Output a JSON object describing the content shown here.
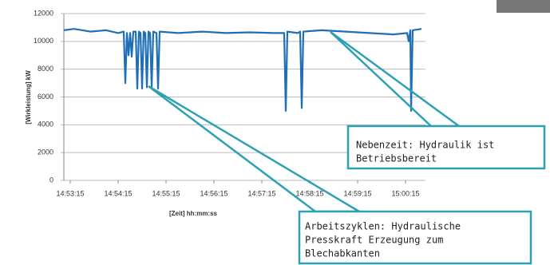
{
  "chart_data": {
    "type": "line",
    "x_label": "[Zeit] hh:mm:ss",
    "y_label": "[Wirkleistung] kW",
    "x": [
      "14:53:07",
      "14:53:20",
      "14:53:40",
      "14:54:00",
      "14:54:15",
      "14:54:22",
      "14:54:24",
      "14:54:26",
      "14:54:28",
      "14:54:30",
      "14:54:32",
      "14:54:34",
      "14:54:37",
      "14:54:39",
      "14:54:41",
      "14:54:43",
      "14:54:45",
      "14:54:47",
      "14:54:49",
      "14:54:51",
      "14:54:53",
      "14:54:55",
      "14:54:57",
      "14:54:59",
      "14:55:03",
      "14:55:05",
      "14:55:07",
      "14:55:30",
      "14:56:00",
      "14:56:30",
      "14:57:00",
      "14:57:30",
      "14:57:43",
      "14:57:45",
      "14:57:47",
      "14:58:00",
      "14:58:03",
      "14:58:05",
      "14:58:07",
      "14:58:30",
      "14:59:00",
      "14:59:30",
      "15:00:00",
      "15:00:17",
      "15:00:19",
      "15:00:21",
      "15:00:22",
      "15:00:24",
      "15:00:35"
    ],
    "series": [
      {
        "color": "#1f6fb5",
        "values": [
          10800,
          10900,
          10700,
          10800,
          10600,
          10700,
          7000,
          10600,
          9000,
          10600,
          8900,
          10700,
          10700,
          6600,
          10700,
          10600,
          6600,
          10700,
          10600,
          6700,
          10700,
          10600,
          6700,
          10700,
          10600,
          6600,
          10700,
          10600,
          10700,
          10600,
          10650,
          10600,
          10600,
          5000,
          10700,
          10600,
          10700,
          5200,
          10700,
          10800,
          10700,
          10600,
          10500,
          10600,
          10000,
          10800,
          5000,
          10800,
          10900
        ]
      }
    ],
    "xlim": [
      "14:53:07",
      "15:00:40"
    ],
    "xticks": [
      "14:53:15",
      "14:54:15",
      "14:55:15",
      "14:56:15",
      "14:57:15",
      "14:58:15",
      "14:59:15",
      "15:00:15"
    ],
    "ylim": [
      0,
      12000
    ],
    "yticks": [
      0,
      2000,
      4000,
      6000,
      8000,
      10000,
      12000
    ],
    "grid": true,
    "annotations": [
      {
        "lines": [
          "Nebenzeit: Hydraulik ist",
          "Betriebsbereit"
        ]
      },
      {
        "lines": [
          "Arbeitszyklen: Hydraulische",
          "Presskraft Erzeugung zum",
          "Blechabkanten"
        ]
      }
    ]
  }
}
